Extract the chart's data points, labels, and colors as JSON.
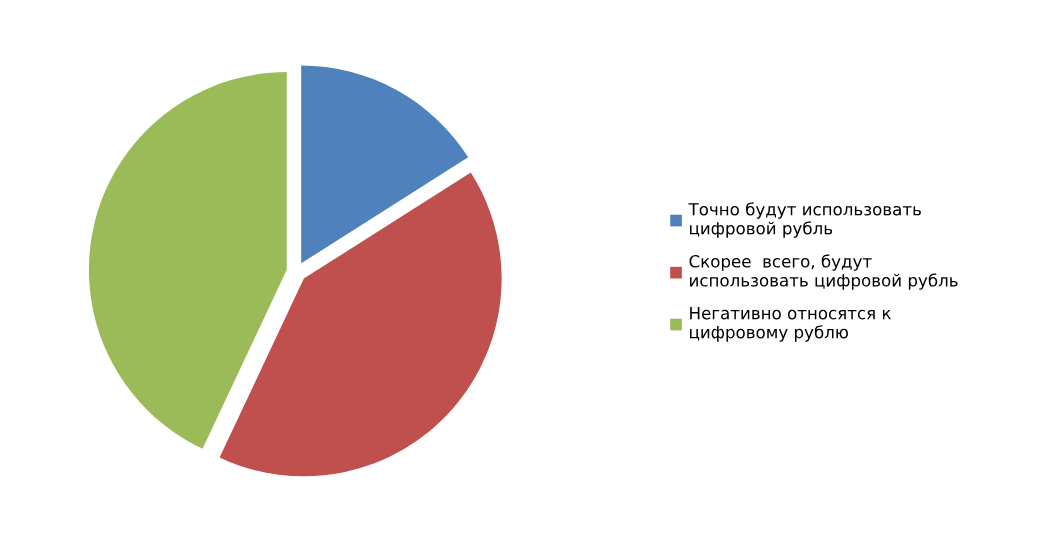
{
  "chart_data": {
    "type": "pie",
    "categories": [
      "Точно будут использовать\nцифровой рубль",
      "Скорее  всего, будут\nиспользовать цифровой рубль",
      "Негативно относятся к\nцифровому рублю"
    ],
    "values": [
      16,
      41,
      43
    ],
    "colors": [
      "#4f81bd",
      "#c0504d",
      "#9bbb59"
    ],
    "legend": "right"
  }
}
